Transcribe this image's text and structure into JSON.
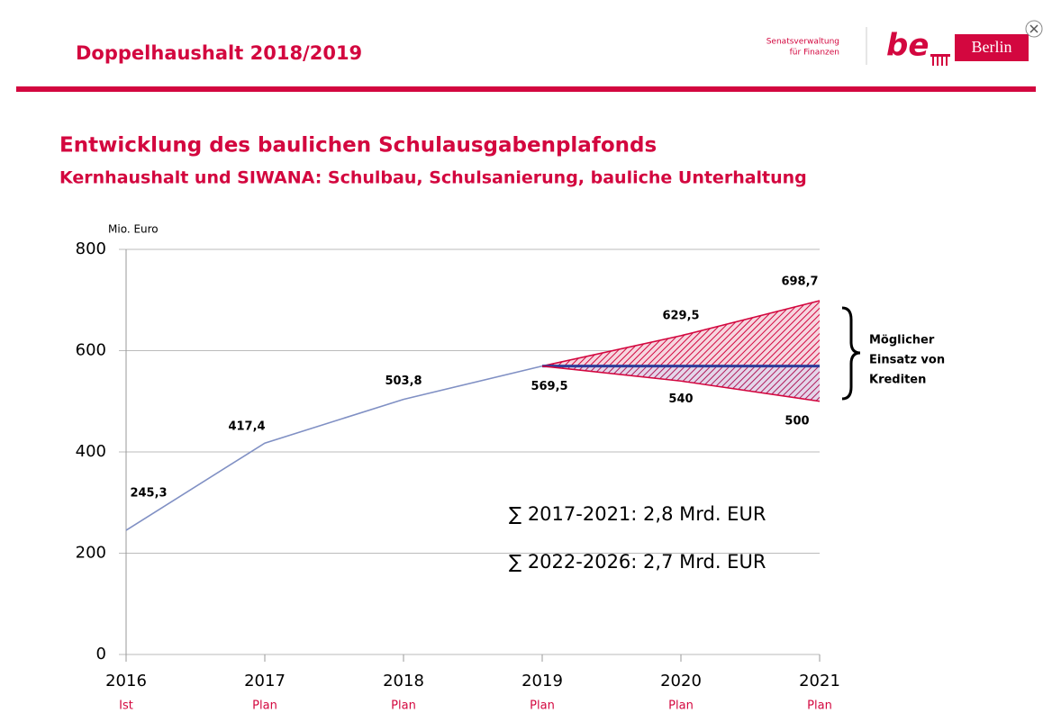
{
  "header": {
    "title": "Doppelhaushalt 2018/2019",
    "logo": {
      "dept_line1": "Senatsverwaltung",
      "dept_line2": "für Finanzen",
      "brand": "be",
      "city": "Berlin"
    }
  },
  "chart_data": {
    "type": "line",
    "title": "Entwicklung des baulichen Schulausgabenplafonds",
    "subtitle": "Kernhaushalt und SIWANA: Schulbau, Schulsanierung, bauliche Unterhaltung",
    "y_label": "Mio. Euro",
    "categories": [
      "2016",
      "2017",
      "2018",
      "2019",
      "2020",
      "2021"
    ],
    "category_sublabels": [
      "Ist",
      "Plan",
      "Plan",
      "Plan",
      "Plan",
      "Plan"
    ],
    "ylim": [
      0,
      800
    ],
    "yticks": [
      0,
      200,
      400,
      600,
      800
    ],
    "grid": true,
    "series": [
      {
        "color": "#8090c4",
        "values": [
          245.3,
          417.4,
          503.8,
          569.5,
          null,
          null
        ],
        "value_labels": [
          "245,3",
          "417,4",
          "503,8",
          "569,5",
          null,
          null
        ]
      },
      {
        "color": "#d3073f",
        "values": [
          null,
          null,
          null,
          569.5,
          629.5,
          698.7
        ],
        "value_labels": [
          null,
          null,
          null,
          null,
          "629,5",
          "698,7"
        ]
      },
      {
        "color": "#2e3c99",
        "values": [
          null,
          null,
          null,
          569.5,
          569.5,
          569.5
        ]
      },
      {
        "color": "#d3073f",
        "values": [
          null,
          null,
          null,
          569.5,
          540,
          500
        ],
        "value_labels": [
          null,
          null,
          null,
          null,
          "540",
          "500"
        ]
      }
    ],
    "annotations": {
      "bracket_lines": [
        "Möglicher",
        "Einsatz von",
        "Krediten"
      ],
      "sum1": "∑ 2017-2021: 2,8 Mrd. EUR",
      "sum2": "∑ 2022-2026: 2,7 Mrd. EUR"
    }
  }
}
